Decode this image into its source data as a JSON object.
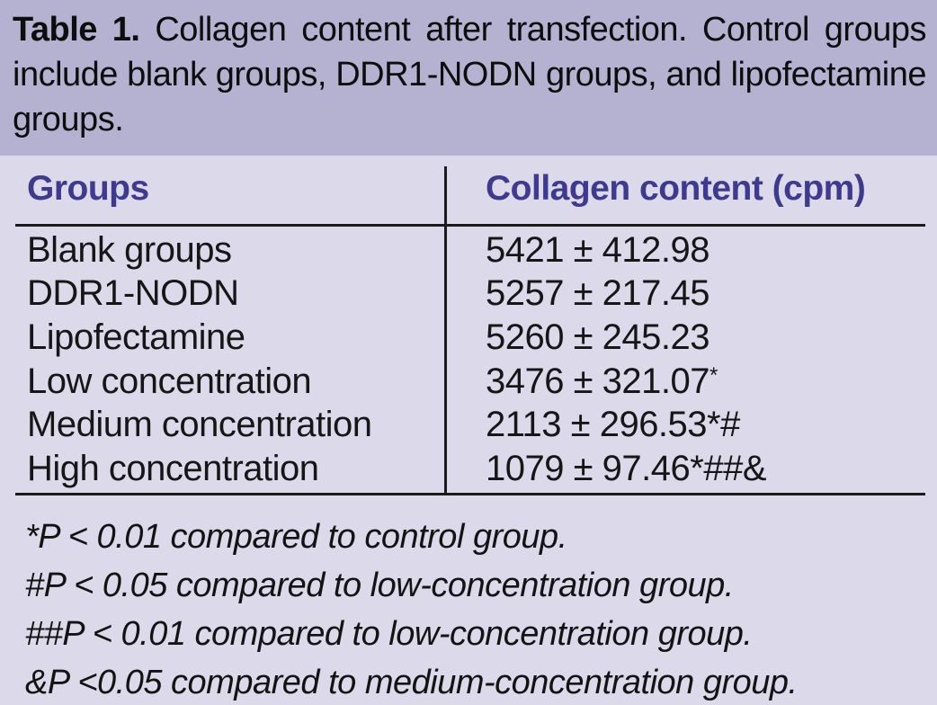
{
  "caption": {
    "label": "Table 1.",
    "text": " Collagen content after transfection. Control groups include blank groups, DDR1-NODN groups, and lipofectamine groups."
  },
  "table": {
    "headers": {
      "groups": "Groups",
      "collagen": "Collagen content (cpm)"
    },
    "rows": [
      {
        "group": "Blank groups",
        "value": "5421 ± 412.98",
        "sup": ""
      },
      {
        "group": "DDR1-NODN",
        "value": "5257 ± 217.45",
        "sup": ""
      },
      {
        "group": "Lipofectamine",
        "value": "5260 ± 245.23",
        "sup": ""
      },
      {
        "group": "Low concentration",
        "value": "3476 ± 321.07",
        "sup": "*"
      },
      {
        "group": "Medium concentration",
        "value": "2113 ± 296.53*#",
        "sup": ""
      },
      {
        "group": "High concentration",
        "value": "1079 ± 97.46*##&",
        "sup": ""
      }
    ],
    "footnotes": [
      "*P < 0.01 compared to control group.",
      "#P < 0.05 compared to low-concentration group.",
      "##P < 0.01 compared to low-concentration group.",
      "&P <0.05 compared to medium-concentration group."
    ]
  },
  "colors": {
    "caption_background": "#b4b1d1",
    "table_background": "#dcdaea",
    "header_text": "#3e3a8e",
    "body_text": "#161616",
    "rule": "#1b1b1b"
  }
}
